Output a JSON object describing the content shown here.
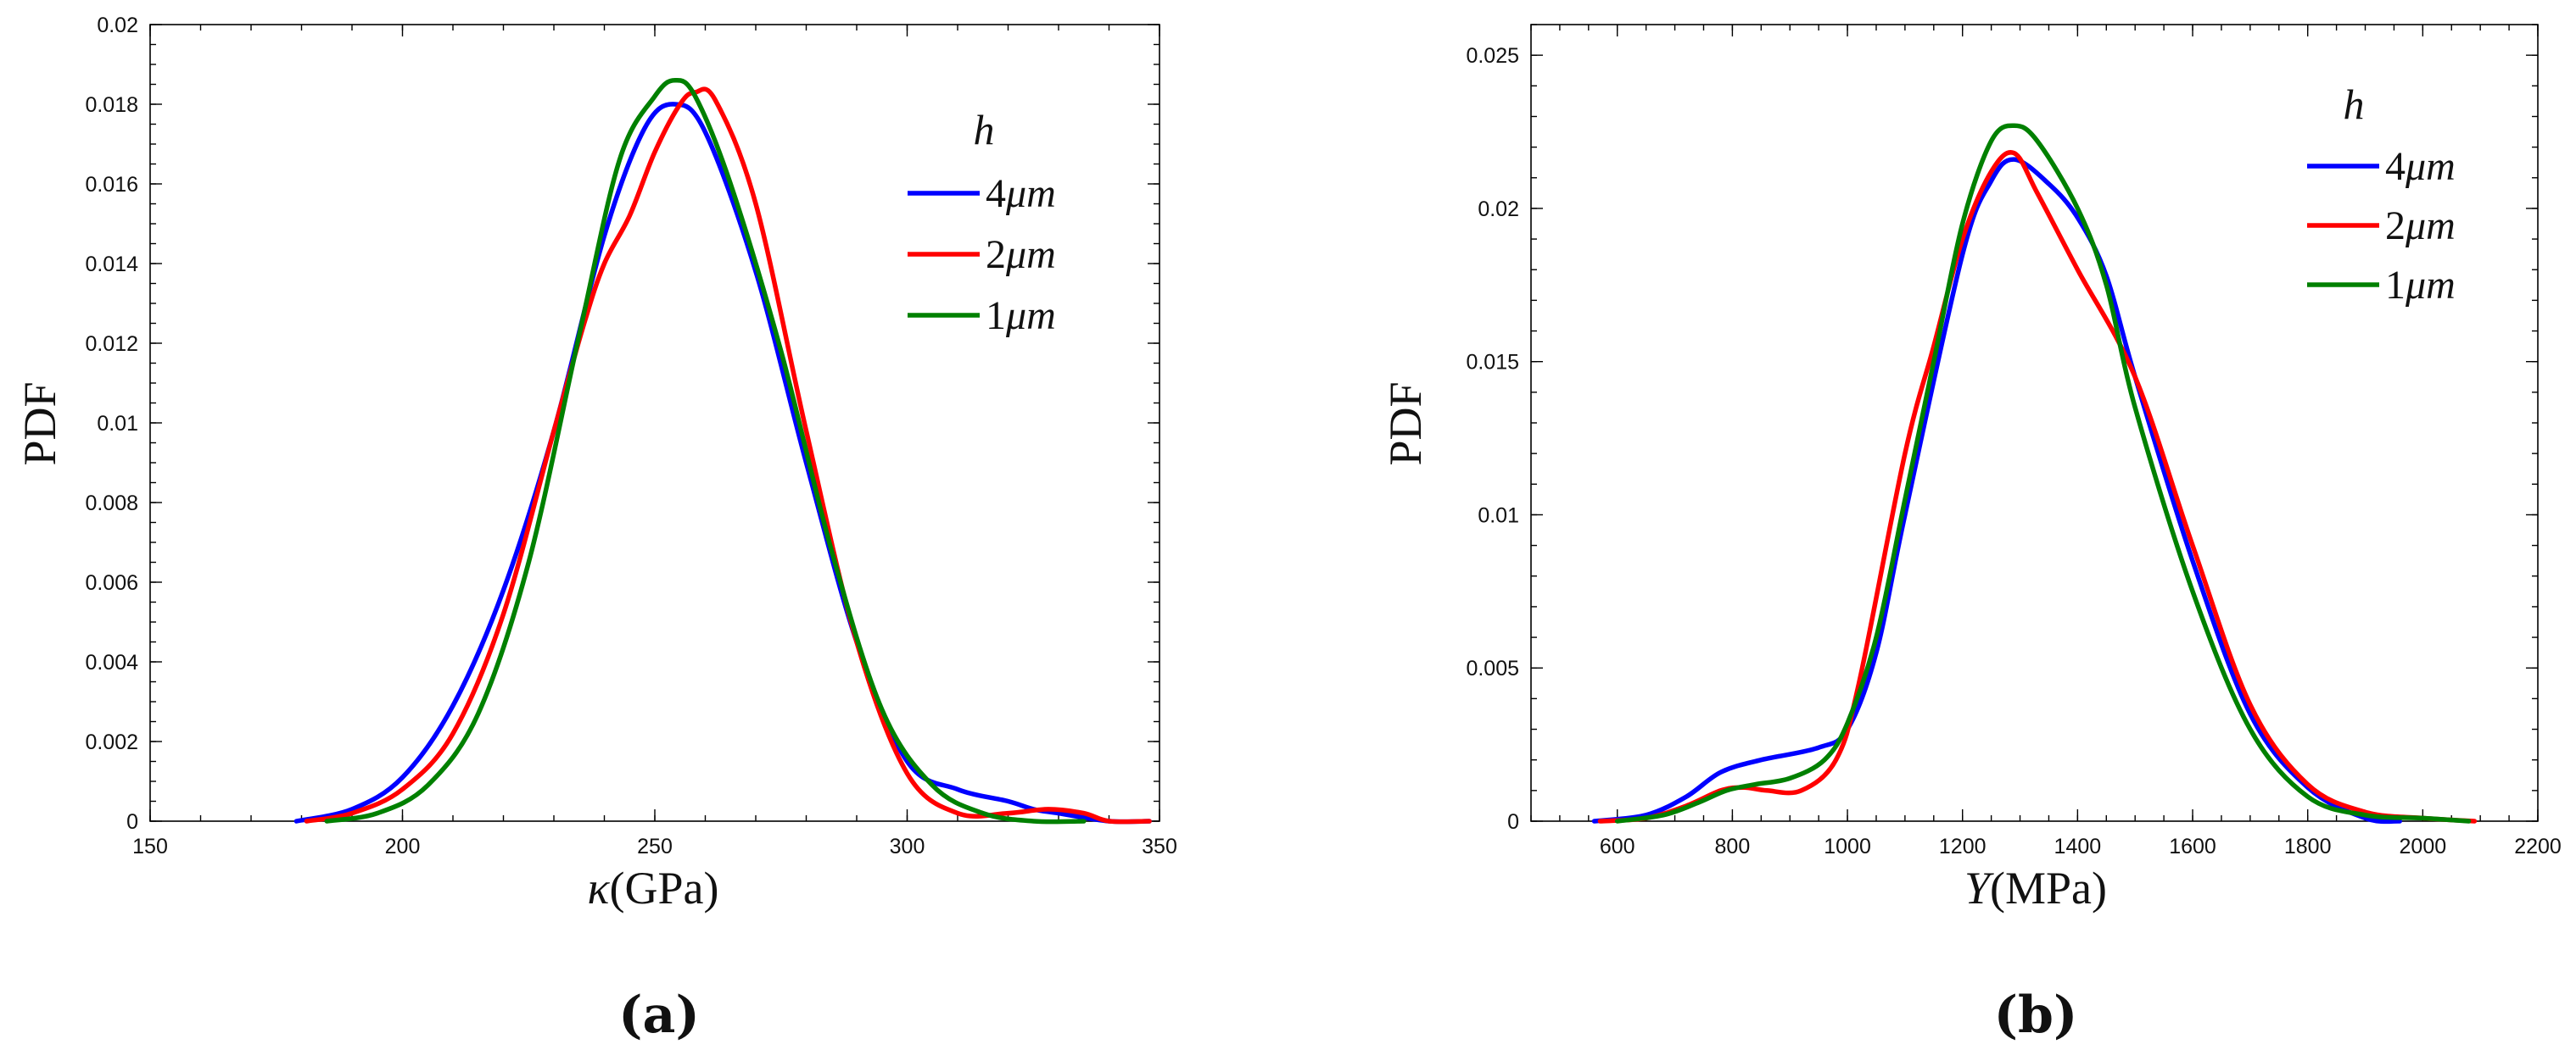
{
  "chart_data": [
    {
      "type": "line",
      "panel": "(a)",
      "ylabel": "PDF",
      "xlabel_symbol": "κ",
      "xlabel_unit": "(GPa)",
      "xlim": [
        150,
        350
      ],
      "ylim": [
        0,
        0.02
      ],
      "xticks": [
        150,
        200,
        250,
        300,
        350
      ],
      "yticks": [
        0,
        0.002,
        0.004,
        0.006,
        0.008,
        0.01,
        0.012,
        0.014,
        0.016,
        0.018,
        0.02
      ],
      "xtick_labels": [
        "150",
        "200",
        "250",
        "300",
        "350"
      ],
      "ytick_labels": [
        "0",
        "0.002",
        "0.004",
        "0.006",
        "0.008",
        "0.01",
        "0.012",
        "0.014",
        "0.016",
        "0.018",
        "0.02"
      ],
      "legend_title": "h",
      "legend_position": "top-right",
      "series": [
        {
          "name": "4μm",
          "label_num": "4",
          "label_unit": "μm",
          "color": "#0000ff",
          "x": [
            179,
            190,
            200,
            210,
            220,
            230,
            240,
            248,
            254,
            260,
            270,
            280,
            290,
            300,
            310,
            320,
            325,
            330,
            340,
            348
          ],
          "y": [
            0.0,
            0.0003,
            0.0011,
            0.0029,
            0.0058,
            0.0098,
            0.0147,
            0.0174,
            0.018,
            0.0173,
            0.0138,
            0.009,
            0.0045,
            0.0015,
            0.0008,
            0.0005,
            0.0003,
            0.0002,
            0.0,
            0.0
          ]
        },
        {
          "name": "2μm",
          "label_num": "2",
          "label_unit": "μm",
          "color": "#ff0000",
          "x": [
            181,
            190,
            200,
            210,
            220,
            230,
            236,
            240,
            245,
            250,
            255,
            258,
            262,
            270,
            280,
            290,
            300,
            310,
            320,
            328,
            335,
            340,
            348
          ],
          "y": [
            0.0,
            0.0002,
            0.0008,
            0.0022,
            0.0052,
            0.0098,
            0.0125,
            0.014,
            0.0152,
            0.0168,
            0.018,
            0.0183,
            0.0181,
            0.0155,
            0.0098,
            0.0045,
            0.0012,
            0.0002,
            0.0002,
            0.0003,
            0.0002,
            0.0,
            0.0
          ]
        },
        {
          "name": "1μm",
          "label_num": "1",
          "label_unit": "μm",
          "color": "#008000",
          "x": [
            185,
            195,
            205,
            215,
            225,
            235,
            243,
            250,
            254,
            258,
            265,
            275,
            285,
            295,
            305,
            315,
            325,
            335
          ],
          "y": [
            0.0,
            0.0002,
            0.0009,
            0.0027,
            0.0065,
            0.0122,
            0.0166,
            0.0182,
            0.0186,
            0.0182,
            0.016,
            0.0118,
            0.0068,
            0.0028,
            0.0009,
            0.0002,
            0.0,
            0.0
          ]
        }
      ]
    },
    {
      "type": "line",
      "panel": "(b)",
      "ylabel": "PDF",
      "xlabel_symbol": "Y",
      "xlabel_unit": "(MPa)",
      "xlim": [
        450,
        2200
      ],
      "ylim": [
        0,
        0.026
      ],
      "xticks": [
        600,
        800,
        1000,
        1200,
        1400,
        1600,
        1800,
        2000,
        2200
      ],
      "yticks": [
        0,
        0.005,
        0.01,
        0.015,
        0.02,
        0.025
      ],
      "xtick_labels": [
        "600",
        "800",
        "1000",
        "1200",
        "1400",
        "1600",
        "1800",
        "2000",
        "2200"
      ],
      "ytick_labels": [
        "0",
        "0.005",
        "0.01",
        "0.015",
        "0.02",
        "0.025"
      ],
      "legend_title": "h",
      "legend_position": "top-right",
      "series": [
        {
          "name": "4μm",
          "label_num": "4",
          "label_unit": "μm",
          "color": "#0000ff",
          "x": [
            560,
            650,
            720,
            780,
            850,
            950,
            1000,
            1050,
            1100,
            1200,
            1250,
            1290,
            1350,
            1400,
            1450,
            1500,
            1600,
            1700,
            1800,
            1900,
            1960
          ],
          "y": [
            0.0,
            0.0002,
            0.0008,
            0.0016,
            0.002,
            0.0024,
            0.003,
            0.0055,
            0.01,
            0.0185,
            0.0209,
            0.0216,
            0.0208,
            0.0197,
            0.0178,
            0.0145,
            0.0085,
            0.0035,
            0.0011,
            0.0001,
            0.0
          ]
        },
        {
          "name": "2μm",
          "label_num": "2",
          "label_unit": "μm",
          "color": "#ff0000",
          "x": [
            570,
            650,
            720,
            780,
            820,
            860,
            920,
            980,
            1020,
            1100,
            1150,
            1200,
            1250,
            1290,
            1330,
            1400,
            1500,
            1600,
            1700,
            1800,
            1900,
            2000,
            2090
          ],
          "y": [
            0.0,
            0.0001,
            0.0005,
            0.001,
            0.0011,
            0.001,
            0.001,
            0.002,
            0.0045,
            0.012,
            0.0155,
            0.019,
            0.0212,
            0.0218,
            0.0205,
            0.018,
            0.0145,
            0.009,
            0.0038,
            0.0012,
            0.0003,
            0.0001,
            0.0
          ]
        },
        {
          "name": "1μm",
          "label_num": "1",
          "label_unit": "μm",
          "color": "#008000",
          "x": [
            600,
            680,
            740,
            790,
            840,
            900,
            960,
            1000,
            1050,
            1100,
            1150,
            1200,
            1250,
            1290,
            1330,
            1400,
            1450,
            1500,
            1600,
            1700,
            1800,
            1900,
            2000,
            2080
          ],
          "y": [
            0.0,
            0.0002,
            0.0006,
            0.001,
            0.0012,
            0.0014,
            0.002,
            0.0032,
            0.006,
            0.0105,
            0.015,
            0.0195,
            0.0222,
            0.0227,
            0.0222,
            0.02,
            0.0175,
            0.0135,
            0.0075,
            0.003,
            0.0008,
            0.0002,
            0.0001,
            0.0
          ]
        }
      ]
    }
  ]
}
